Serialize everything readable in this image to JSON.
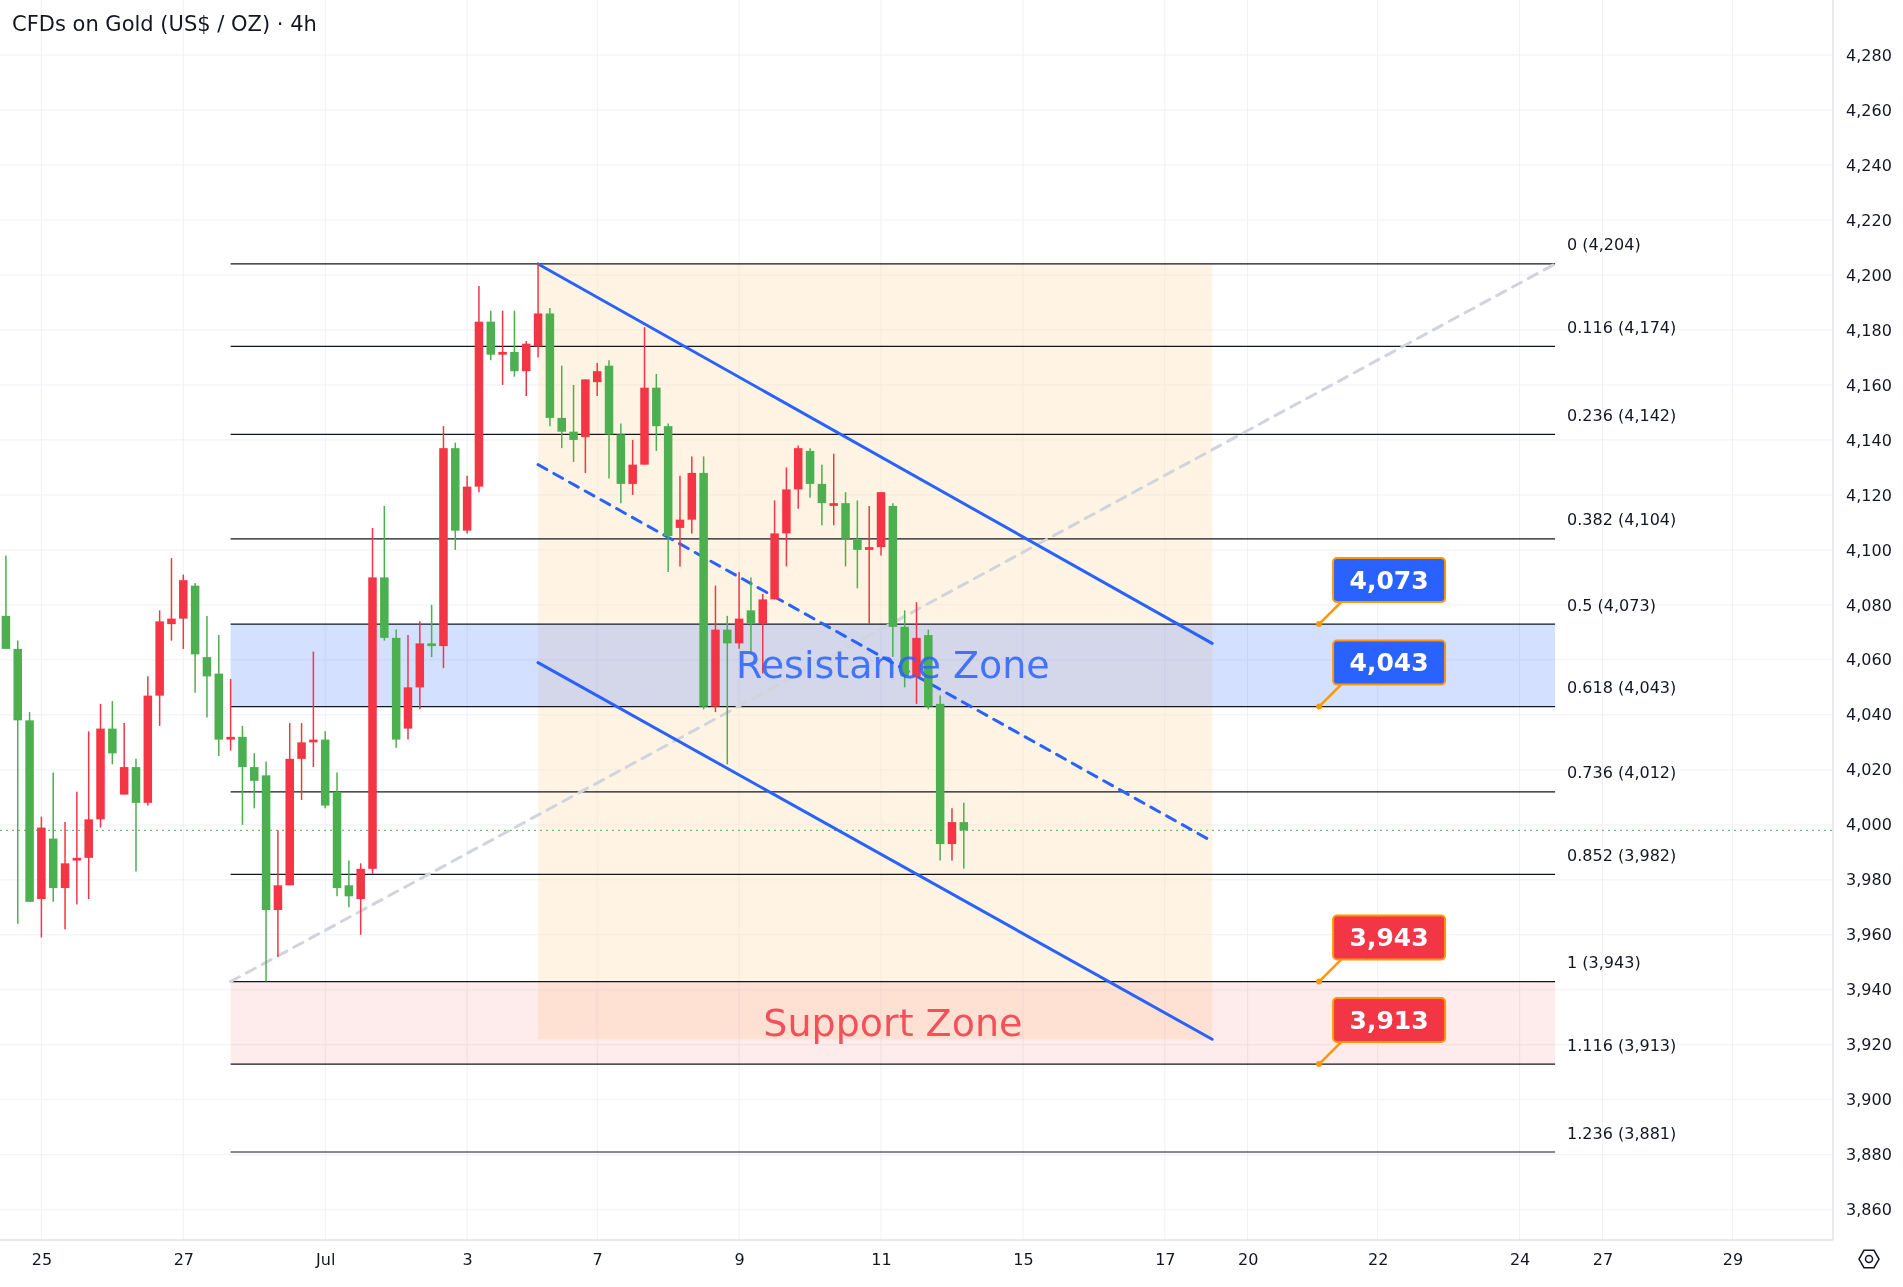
{
  "chart_data": {
    "type": "candlestick",
    "title": "CFDs on Gold (US$ / OZ) · 4h",
    "categories": [
      null,
      null,
      null,
      "25",
      null,
      null,
      null,
      null,
      null,
      null,
      null,
      null,
      null,
      null,
      null,
      "27",
      null,
      null,
      null,
      null,
      null,
      null,
      null,
      null,
      null,
      null,
      null,
      "Jul",
      null,
      null,
      null,
      null,
      null,
      null,
      null,
      null,
      null,
      null,
      null,
      "3",
      null,
      null,
      null,
      null,
      null,
      null,
      null,
      null,
      null,
      null,
      "7",
      null,
      null,
      null,
      null,
      null,
      null,
      null,
      null,
      null,
      null,
      null,
      "9",
      null,
      null,
      null,
      null,
      null,
      null,
      null,
      null,
      null,
      null,
      null,
      "11",
      null,
      null,
      null,
      null,
      null,
      null,
      null,
      null,
      null,
      null,
      null,
      "15",
      null,
      null,
      null,
      null,
      null,
      null,
      null,
      null,
      null,
      null,
      null,
      "17",
      null,
      null,
      null,
      null,
      null,
      null,
      "20",
      null,
      null,
      null,
      null,
      null,
      null,
      null,
      null,
      null,
      null,
      "22",
      null,
      null,
      null,
      null,
      null,
      null,
      null,
      null,
      null,
      null,
      null,
      "24",
      null,
      null,
      null,
      null,
      null,
      null,
      "27",
      null,
      null,
      null,
      null,
      null,
      null,
      null,
      null,
      null,
      null,
      "29",
      null,
      null,
      null,
      null,
      null,
      null,
      null,
      null
    ],
    "ohlc": [
      [
        4076,
        4098,
        4064,
        4064
      ],
      [
        4064,
        4067,
        3964,
        4038
      ],
      [
        4038,
        4041,
        3972,
        3972
      ],
      [
        3973,
        4003,
        3959,
        3999
      ],
      [
        3995,
        4019,
        3972,
        3977
      ],
      [
        3977,
        4001,
        3962,
        3986
      ],
      [
        3987,
        4012,
        3971,
        3988
      ],
      [
        3988,
        4034,
        3973,
        4002
      ],
      [
        4002,
        4044,
        3999,
        4035
      ],
      [
        4035,
        4045,
        4022,
        4026
      ],
      [
        4011,
        4037,
        4011,
        4021
      ],
      [
        4021,
        4024,
        3983,
        4008
      ],
      [
        4008,
        4054,
        4007,
        4047
      ],
      [
        4047,
        4078,
        4036,
        4074
      ],
      [
        4073,
        4097,
        4067,
        4075
      ],
      [
        4075,
        4091,
        4064,
        4089
      ],
      [
        4087,
        4088,
        4048,
        4062
      ],
      [
        4061,
        4076,
        4039,
        4054
      ],
      [
        4055,
        4069,
        4025,
        4031
      ],
      [
        4031,
        4053,
        4027,
        4032
      ],
      [
        4032,
        4036,
        4000,
        4021
      ],
      [
        4021,
        4026,
        4006,
        4016
      ],
      [
        4018,
        4023,
        3943,
        3969
      ],
      [
        3969,
        3998,
        3952,
        3978
      ],
      [
        3978,
        4037,
        3978,
        4024
      ],
      [
        4024,
        4037,
        4009,
        4030
      ],
      [
        4030,
        4063,
        4021,
        4031
      ],
      [
        4031,
        4034,
        4006,
        4007
      ],
      [
        4012,
        4019,
        3974,
        3977
      ],
      [
        3978,
        3987,
        3970,
        3974
      ],
      [
        3973,
        3986,
        3960,
        3984
      ],
      [
        3984,
        4108,
        3982,
        4090
      ],
      [
        4090,
        4116,
        4067,
        4068
      ],
      [
        4068,
        4071,
        4028,
        4031
      ],
      [
        4035,
        4069,
        4031,
        4050
      ],
      [
        4050,
        4074,
        4042,
        4066
      ],
      [
        4066,
        4080,
        4061,
        4065
      ],
      [
        4065,
        4145,
        4057,
        4137
      ],
      [
        4137,
        4139,
        4100,
        4107
      ],
      [
        4107,
        4127,
        4106,
        4123
      ],
      [
        4123,
        4196,
        4121,
        4183
      ],
      [
        4183,
        4187,
        4169,
        4171
      ],
      [
        4171,
        4187,
        4160,
        4172
      ],
      [
        4172,
        4187,
        4163,
        4165
      ],
      [
        4165,
        4176,
        4156,
        4175
      ],
      [
        4174,
        4204,
        4170,
        4186
      ],
      [
        4186,
        4188,
        4145,
        4148
      ],
      [
        4148,
        4167,
        4137,
        4143
      ],
      [
        4143,
        4160,
        4132,
        4140
      ],
      [
        4141,
        4162,
        4128,
        4162
      ],
      [
        4161,
        4168,
        4156,
        4165
      ],
      [
        4167,
        4169,
        4126,
        4142
      ],
      [
        4142,
        4146,
        4117,
        4124
      ],
      [
        4124,
        4140,
        4120,
        4131
      ],
      [
        4131,
        4181,
        4131,
        4159
      ],
      [
        4159,
        4164,
        4136,
        4145
      ],
      [
        4145,
        4146,
        4092,
        4105
      ],
      [
        4108,
        4127,
        4094,
        4111
      ],
      [
        4111,
        4134,
        4106,
        4128
      ],
      [
        4128,
        4134,
        4042,
        4043
      ],
      [
        4043,
        4087,
        4041,
        4071
      ],
      [
        4071,
        4076,
        4022,
        4066
      ],
      [
        4066,
        4092,
        4064,
        4075
      ],
      [
        4078,
        4090,
        4062,
        4073
      ],
      [
        4073,
        4084,
        4055,
        4082
      ],
      [
        4082,
        4118,
        4082,
        4106
      ],
      [
        4106,
        4130,
        4094,
        4122
      ],
      [
        4122,
        4138,
        4115,
        4137
      ],
      [
        4136,
        4137,
        4119,
        4124
      ],
      [
        4124,
        4131,
        4109,
        4117
      ],
      [
        4116,
        4135,
        4109,
        4117
      ],
      [
        4117,
        4121,
        4094,
        4104
      ],
      [
        4104,
        4118,
        4086,
        4100
      ],
      [
        4100,
        4116,
        4073,
        4101
      ],
      [
        4101,
        4121,
        4098,
        4121
      ],
      [
        4116,
        4117,
        4061,
        4072
      ],
      [
        4072,
        4078,
        4050,
        4054
      ],
      [
        4054,
        4081,
        4044,
        4068
      ],
      [
        4069,
        4071,
        4042,
        4043
      ],
      [
        4044,
        4047,
        3987,
        3993
      ],
      [
        3993,
        4006,
        3987,
        4001
      ],
      [
        4001,
        4008,
        3984,
        3998
      ],
      null,
      null,
      null,
      null,
      null,
      null,
      null,
      null,
      null,
      null,
      null,
      null,
      null,
      null,
      null,
      null,
      null,
      null,
      null,
      null,
      null,
      null,
      null,
      null,
      null,
      null,
      null,
      null,
      null,
      null,
      null,
      null,
      null,
      null,
      null,
      null,
      null,
      null,
      null,
      null,
      null,
      null,
      null,
      null,
      null,
      null,
      null,
      null,
      null,
      null,
      null,
      null,
      null,
      null,
      null,
      null,
      null,
      null,
      null,
      null,
      null,
      null,
      null,
      null,
      null,
      null,
      null,
      null,
      null,
      null,
      null,
      null,
      null
    ],
    "colors": [
      "#4caf50",
      "#4caf50",
      "#4caf50",
      "#f23645",
      "#4caf50",
      "#f23645",
      "#f23645",
      "#f23645",
      "#f23645",
      "#4caf50",
      "#f23645",
      "#4caf50",
      "#f23645",
      "#f23645",
      "#f23645",
      "#f23645",
      "#4caf50",
      "#4caf50",
      "#4caf50",
      "#f23645",
      "#4caf50",
      "#4caf50",
      "#4caf50",
      "#f23645",
      "#f23645",
      "#f23645",
      "#f23645",
      "#4caf50",
      "#4caf50",
      "#4caf50",
      "#f23645",
      "#f23645",
      "#4caf50",
      "#4caf50",
      "#f23645",
      "#f23645",
      "#4caf50",
      "#f23645",
      "#4caf50",
      "#f23645",
      "#f23645",
      "#4caf50",
      "#f23645",
      "#4caf50",
      "#f23645",
      "#f23645",
      "#4caf50",
      "#4caf50",
      "#4caf50",
      "#f23645",
      "#f23645",
      "#4caf50",
      "#4caf50",
      "#f23645",
      "#f23645",
      "#4caf50",
      "#4caf50",
      "#f23645",
      "#f23645",
      "#4caf50",
      "#f23645",
      "#4caf50",
      "#f23645",
      "#4caf50",
      "#f23645",
      "#f23645",
      "#f23645",
      "#f23645",
      "#4caf50",
      "#4caf50",
      "#f23645",
      "#4caf50",
      "#4caf50",
      "#f23645",
      "#f23645",
      "#4caf50",
      "#4caf50",
      "#f23645",
      "#4caf50",
      "#4caf50",
      "#f23645",
      "#4caf50",
      null,
      null,
      null,
      null,
      null,
      null,
      null,
      null,
      null,
      null,
      null,
      null,
      null,
      null,
      null,
      null,
      null,
      null,
      null,
      null,
      null,
      null,
      null,
      null,
      null,
      null,
      null,
      null,
      null,
      null,
      null,
      null,
      null,
      null,
      null,
      null,
      null,
      null,
      null,
      null,
      null,
      null,
      null,
      null,
      null,
      null,
      null,
      null,
      null,
      null,
      null,
      null,
      null,
      null,
      null,
      null,
      null,
      null,
      null,
      null,
      null,
      null,
      null,
      null,
      null,
      null,
      null,
      null,
      null,
      null,
      null,
      null,
      null
    ],
    "series": [
      {
        "type": "line",
        "color": "#d1d4dc",
        "line_style": "dashed",
        "values": [
          null,
          null,
          null,
          null,
          null,
          null,
          null,
          null,
          null,
          null,
          null,
          null,
          null,
          null,
          null,
          null,
          null,
          null,
          null,
          3943,
          null,
          null,
          null,
          null,
          null,
          null,
          null,
          null,
          null,
          null,
          null,
          null,
          null,
          null,
          null,
          null,
          null,
          null,
          null,
          null,
          null,
          null,
          null,
          null,
          null,
          null,
          null,
          null,
          null,
          null,
          null,
          null,
          null,
          null,
          null,
          null,
          null,
          null,
          null,
          null,
          null,
          null,
          null,
          null,
          null,
          null,
          null,
          null,
          null,
          null,
          null,
          null,
          null,
          null,
          null,
          null,
          null,
          null,
          null,
          null,
          null,
          null,
          null,
          null,
          null,
          null,
          null,
          null,
          null,
          null,
          null,
          null,
          null,
          null,
          null,
          null,
          null,
          null,
          null,
          null,
          null,
          null,
          null,
          null,
          null,
          null,
          null,
          null,
          null,
          null,
          null,
          null,
          null,
          null,
          null,
          null,
          null,
          null,
          null,
          null,
          null,
          null,
          null,
          null,
          null,
          null,
          null,
          null,
          null,
          null,
          null,
          4204,
          null,
          null,
          null,
          null,
          null,
          null,
          null,
          null,
          null,
          null,
          null,
          null,
          null,
          null,
          null,
          null,
          null,
          null,
          null,
          null,
          null,
          null,
          null
        ]
      },
      {
        "type": "line",
        "color": "#2962ff",
        "line_style": "solid",
        "values": [
          null,
          null,
          null,
          null,
          null,
          null,
          null,
          null,
          null,
          null,
          null,
          null,
          null,
          null,
          null,
          null,
          null,
          null,
          null,
          null,
          null,
          null,
          null,
          null,
          null,
          null,
          null,
          null,
          null,
          null,
          null,
          null,
          null,
          null,
          null,
          null,
          null,
          null,
          null,
          null,
          null,
          null,
          null,
          null,
          null,
          4204,
          null,
          null,
          null,
          null,
          null,
          null,
          null,
          null,
          null,
          null,
          null,
          null,
          null,
          null,
          null,
          null,
          null,
          null,
          null,
          null,
          null,
          null,
          null,
          null,
          null,
          null,
          null,
          null,
          null,
          null,
          null,
          null,
          null,
          null,
          null,
          null,
          null,
          null,
          null,
          null,
          null,
          null,
          null,
          null,
          null,
          null,
          null,
          null,
          null,
          null,
          null,
          null,
          null,
          null,
          null,
          null,
          4066,
          null,
          null,
          null,
          null,
          null,
          null,
          null,
          null,
          null,
          null,
          null,
          null,
          null,
          null,
          null,
          null,
          null,
          null,
          null,
          null,
          null,
          null,
          null,
          null,
          null,
          null,
          null,
          null,
          null,
          null,
          null,
          null,
          null,
          null,
          null,
          null,
          null,
          null,
          null,
          null,
          null,
          null,
          null,
          null,
          null,
          null,
          null,
          null,
          null,
          null,
          null,
          null
        ]
      },
      {
        "type": "line",
        "color": "#2962ff",
        "line_style": "solid",
        "values": [
          null,
          null,
          null,
          null,
          null,
          null,
          null,
          null,
          null,
          null,
          null,
          null,
          null,
          null,
          null,
          null,
          null,
          null,
          null,
          null,
          null,
          null,
          null,
          null,
          null,
          null,
          null,
          null,
          null,
          null,
          null,
          null,
          null,
          null,
          null,
          null,
          null,
          null,
          null,
          null,
          null,
          null,
          null,
          null,
          null,
          4059,
          null,
          null,
          null,
          null,
          null,
          null,
          null,
          null,
          null,
          null,
          null,
          null,
          null,
          null,
          null,
          null,
          null,
          null,
          null,
          null,
          null,
          null,
          null,
          null,
          null,
          null,
          null,
          null,
          null,
          null,
          null,
          null,
          null,
          null,
          null,
          null,
          null,
          null,
          null,
          null,
          null,
          null,
          null,
          null,
          null,
          null,
          null,
          null,
          null,
          null,
          null,
          null,
          null,
          null,
          null,
          null,
          3922,
          null,
          null,
          null,
          null,
          null,
          null,
          null,
          null,
          null,
          null,
          null,
          null,
          null,
          null,
          null,
          null,
          null,
          null,
          null,
          null,
          null,
          null,
          null,
          null,
          null,
          null,
          null,
          null,
          null,
          null,
          null,
          null,
          null,
          null,
          null,
          null,
          null,
          null,
          null,
          null,
          null,
          null,
          null,
          null,
          null,
          null,
          null,
          null,
          null,
          null,
          null,
          null
        ]
      },
      {
        "type": "line",
        "color": "#2962ff",
        "line_style": "dashed",
        "values": [
          null,
          null,
          null,
          null,
          null,
          null,
          null,
          null,
          null,
          null,
          null,
          null,
          null,
          null,
          null,
          null,
          null,
          null,
          null,
          null,
          null,
          null,
          null,
          null,
          null,
          null,
          null,
          null,
          null,
          null,
          null,
          null,
          null,
          null,
          null,
          null,
          null,
          null,
          null,
          null,
          null,
          null,
          null,
          null,
          null,
          4131,
          null,
          null,
          null,
          null,
          null,
          null,
          null,
          null,
          null,
          null,
          null,
          null,
          null,
          null,
          null,
          null,
          null,
          null,
          null,
          null,
          null,
          null,
          null,
          null,
          null,
          null,
          null,
          null,
          null,
          null,
          null,
          null,
          null,
          null,
          null,
          null,
          null,
          null,
          null,
          null,
          null,
          null,
          null,
          null,
          null,
          null,
          null,
          null,
          null,
          null,
          null,
          null,
          null,
          null,
          null,
          null,
          3994,
          null,
          null,
          null,
          null,
          null,
          null,
          null,
          null,
          null,
          null,
          null,
          null,
          null,
          null,
          null,
          null,
          null,
          null,
          null,
          null,
          null,
          null,
          null,
          null,
          null,
          null,
          null,
          null,
          null,
          null,
          null,
          null,
          null,
          null,
          null,
          null,
          null,
          null,
          null,
          null,
          null,
          null,
          null,
          null,
          null,
          null,
          null,
          null,
          null,
          null,
          null,
          null
        ]
      }
    ],
    "ylim": [
      3849,
      4300
    ],
    "yticks": [
      {
        "value": 3860,
        "label": "3,860"
      },
      {
        "value": 3880,
        "label": "3,880"
      },
      {
        "value": 3900,
        "label": "3,900"
      },
      {
        "value": 3920,
        "label": "3,920"
      },
      {
        "value": 3940,
        "label": "3,940"
      },
      {
        "value": 3960,
        "label": "3,960"
      },
      {
        "value": 3980,
        "label": "3,980"
      },
      {
        "value": 4000,
        "label": "4,000"
      },
      {
        "value": 4020,
        "label": "4,020"
      },
      {
        "value": 4040,
        "label": "4,040"
      },
      {
        "value": 4060,
        "label": "4,060"
      },
      {
        "value": 4080,
        "label": "4,080"
      },
      {
        "value": 4100,
        "label": "4,100"
      },
      {
        "value": 4120,
        "label": "4,120"
      },
      {
        "value": 4140,
        "label": "4,140"
      },
      {
        "value": 4160,
        "label": "4,160"
      },
      {
        "value": 4180,
        "label": "4,180"
      },
      {
        "value": 4200,
        "label": "4,200"
      },
      {
        "value": 4220,
        "label": "4,220"
      },
      {
        "value": 4240,
        "label": "4,240"
      },
      {
        "value": 4260,
        "label": "4,260"
      },
      {
        "value": 4280,
        "label": "4,280"
      }
    ],
    "grid": true,
    "bands": [
      {
        "axis": "y",
        "from": 4043,
        "to": 4073,
        "label": "Resistance Zone",
        "color": "#2962ff"
      },
      {
        "axis": "y",
        "from": 3913,
        "to": 3943,
        "label": "Support Zone",
        "color": "#f23645"
      }
    ],
    "ref_lines": [
      {
        "axis": "y",
        "value": 4204,
        "label": "0 (4,204)",
        "color": "#131722"
      },
      {
        "axis": "y",
        "value": 4174,
        "label": "0.116 (4,174)",
        "color": "#131722"
      },
      {
        "axis": "y",
        "value": 4142,
        "label": "0.236 (4,142)",
        "color": "#131722"
      },
      {
        "axis": "y",
        "value": 4104,
        "label": "0.382 (4,104)",
        "color": "#131722"
      },
      {
        "axis": "y",
        "value": 4073,
        "label": "0.5 (4,073)",
        "color": "#131722"
      },
      {
        "axis": "y",
        "value": 4043,
        "label": "0.618 (4,043)",
        "color": "#131722"
      },
      {
        "axis": "y",
        "value": 4012,
        "label": "0.736 (4,012)",
        "color": "#131722"
      },
      {
        "axis": "y",
        "value": 3982,
        "label": "0.852 (3,982)",
        "color": "#131722"
      },
      {
        "axis": "y",
        "value": 3943,
        "label": "1 (3,943)",
        "color": "#131722"
      },
      {
        "axis": "y",
        "value": 3913,
        "label": "1.116 (3,913)",
        "color": "#131722"
      },
      {
        "axis": "y",
        "value": 3881,
        "label": "1.236 (3,881)",
        "color": "#131722"
      },
      {
        "axis": "y",
        "value": 3998,
        "label": null,
        "color": "#4caf50",
        "line_style": "dotted"
      }
    ],
    "annotations": [
      {
        "text": "4,073",
        "y": 4073
      },
      {
        "text": "4,043",
        "y": 4043
      },
      {
        "text": "3,943",
        "y": 3943
      },
      {
        "text": "3,913",
        "y": 3913
      }
    ]
  }
}
